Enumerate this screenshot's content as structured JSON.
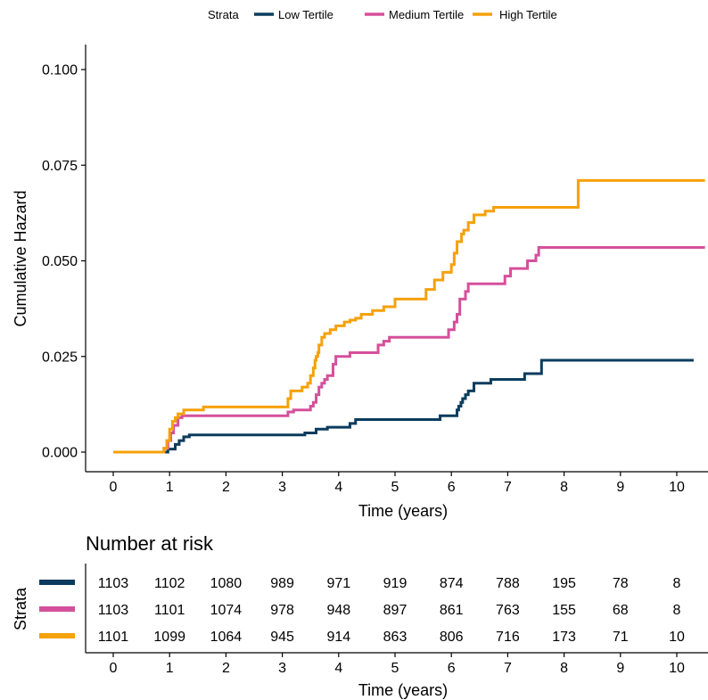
{
  "chart_data": {
    "type": "line",
    "step": true,
    "ylabel": "Cumulative Hazard",
    "xlabel": "Time (years)",
    "xlim": [
      -0.5,
      10.5
    ],
    "ylim": [
      -0.004,
      0.1
    ],
    "xticks": [
      0,
      1,
      2,
      3,
      4,
      5,
      6,
      7,
      8,
      9,
      10
    ],
    "xtick_labels": [
      "0",
      "1",
      "2",
      "3",
      "4",
      "5",
      "6",
      "7",
      "8",
      "9",
      "10"
    ],
    "yticks": [
      0,
      0.025,
      0.05,
      0.075,
      0.1
    ],
    "ytick_labels": [
      "0.000",
      "0.025",
      "0.050",
      "0.075",
      "0.100"
    ],
    "grid": false,
    "legend": {
      "title": "Strata",
      "position": "top",
      "entries": [
        "Low Tertile",
        "Medium Tertile",
        "High Tertile"
      ]
    },
    "series": [
      {
        "name": "Low Tertile",
        "color": "#0B3C5D",
        "points": [
          [
            0,
            0
          ],
          [
            0.97,
            0.0008
          ],
          [
            1.1,
            0.002
          ],
          [
            1.17,
            0.003
          ],
          [
            1.25,
            0.004
          ],
          [
            1.35,
            0.0045
          ],
          [
            3.4,
            0.005
          ],
          [
            3.6,
            0.006
          ],
          [
            3.8,
            0.0065
          ],
          [
            4.2,
            0.0075
          ],
          [
            4.3,
            0.0085
          ],
          [
            5.8,
            0.0095
          ],
          [
            6.1,
            0.011
          ],
          [
            6.13,
            0.012
          ],
          [
            6.17,
            0.013
          ],
          [
            6.2,
            0.014
          ],
          [
            6.25,
            0.015
          ],
          [
            6.3,
            0.016
          ],
          [
            6.4,
            0.018
          ],
          [
            6.7,
            0.019
          ],
          [
            7.3,
            0.0205
          ],
          [
            7.6,
            0.024
          ],
          [
            10.3,
            0.024
          ]
        ]
      },
      {
        "name": "Medium Tertile",
        "color": "#D5509B",
        "points": [
          [
            0,
            0
          ],
          [
            0.9,
            0.001
          ],
          [
            0.97,
            0.003
          ],
          [
            1.02,
            0.005
          ],
          [
            1.07,
            0.007
          ],
          [
            1.15,
            0.009
          ],
          [
            1.22,
            0.0095
          ],
          [
            3.1,
            0.0105
          ],
          [
            3.2,
            0.011
          ],
          [
            3.5,
            0.012
          ],
          [
            3.55,
            0.013
          ],
          [
            3.6,
            0.015
          ],
          [
            3.65,
            0.017
          ],
          [
            3.7,
            0.018
          ],
          [
            3.75,
            0.019
          ],
          [
            3.8,
            0.02
          ],
          [
            3.9,
            0.023
          ],
          [
            3.95,
            0.025
          ],
          [
            4.2,
            0.026
          ],
          [
            4.7,
            0.028
          ],
          [
            4.8,
            0.029
          ],
          [
            4.9,
            0.03
          ],
          [
            5.95,
            0.032
          ],
          [
            6.05,
            0.034
          ],
          [
            6.1,
            0.036
          ],
          [
            6.15,
            0.04
          ],
          [
            6.25,
            0.042
          ],
          [
            6.3,
            0.044
          ],
          [
            6.95,
            0.046
          ],
          [
            7.05,
            0.048
          ],
          [
            7.35,
            0.05
          ],
          [
            7.5,
            0.0515
          ],
          [
            7.55,
            0.0535
          ],
          [
            10.5,
            0.0535
          ]
        ]
      },
      {
        "name": "High Tertile",
        "color": "#F5A10A",
        "points": [
          [
            0,
            0
          ],
          [
            0.9,
            0.001
          ],
          [
            0.95,
            0.003
          ],
          [
            1.0,
            0.006
          ],
          [
            1.05,
            0.008
          ],
          [
            1.1,
            0.009
          ],
          [
            1.15,
            0.01
          ],
          [
            1.25,
            0.011
          ],
          [
            1.6,
            0.0118
          ],
          [
            3.1,
            0.014
          ],
          [
            3.15,
            0.016
          ],
          [
            3.35,
            0.017
          ],
          [
            3.45,
            0.018
          ],
          [
            3.5,
            0.02
          ],
          [
            3.55,
            0.022
          ],
          [
            3.58,
            0.024
          ],
          [
            3.6,
            0.025
          ],
          [
            3.63,
            0.026
          ],
          [
            3.65,
            0.028
          ],
          [
            3.7,
            0.03
          ],
          [
            3.75,
            0.031
          ],
          [
            3.85,
            0.032
          ],
          [
            3.95,
            0.033
          ],
          [
            4.1,
            0.034
          ],
          [
            4.2,
            0.0345
          ],
          [
            4.3,
            0.035
          ],
          [
            4.4,
            0.036
          ],
          [
            4.6,
            0.037
          ],
          [
            4.8,
            0.038
          ],
          [
            5.0,
            0.04
          ],
          [
            5.55,
            0.0425
          ],
          [
            5.7,
            0.045
          ],
          [
            5.85,
            0.047
          ],
          [
            6.0,
            0.049
          ],
          [
            6.05,
            0.052
          ],
          [
            6.1,
            0.055
          ],
          [
            6.18,
            0.057
          ],
          [
            6.22,
            0.058
          ],
          [
            6.3,
            0.06
          ],
          [
            6.4,
            0.062
          ],
          [
            6.6,
            0.063
          ],
          [
            6.75,
            0.064
          ],
          [
            8.25,
            0.071
          ],
          [
            10.5,
            0.071
          ]
        ]
      }
    ],
    "risk_table": {
      "title": "Number at risk",
      "ylabel": "Strata",
      "xlabel": "Time (years)",
      "times": [
        0,
        1,
        2,
        3,
        4,
        5,
        6,
        7,
        8,
        9,
        10
      ],
      "rows": [
        {
          "name": "Low Tertile",
          "color": "#0B3C5D",
          "values": [
            "1103",
            "1102",
            "1080",
            "989",
            "971",
            "919",
            "874",
            "788",
            "195",
            "78",
            "8"
          ]
        },
        {
          "name": "Medium Tertile",
          "color": "#D5509B",
          "values": [
            "1103",
            "1101",
            "1074",
            "978",
            "948",
            "897",
            "861",
            "763",
            "155",
            "68",
            "8"
          ]
        },
        {
          "name": "High Tertile",
          "color": "#F5A10A",
          "values": [
            "1101",
            "1099",
            "1064",
            "945",
            "914",
            "863",
            "806",
            "716",
            "173",
            "71",
            "10"
          ]
        }
      ]
    }
  }
}
